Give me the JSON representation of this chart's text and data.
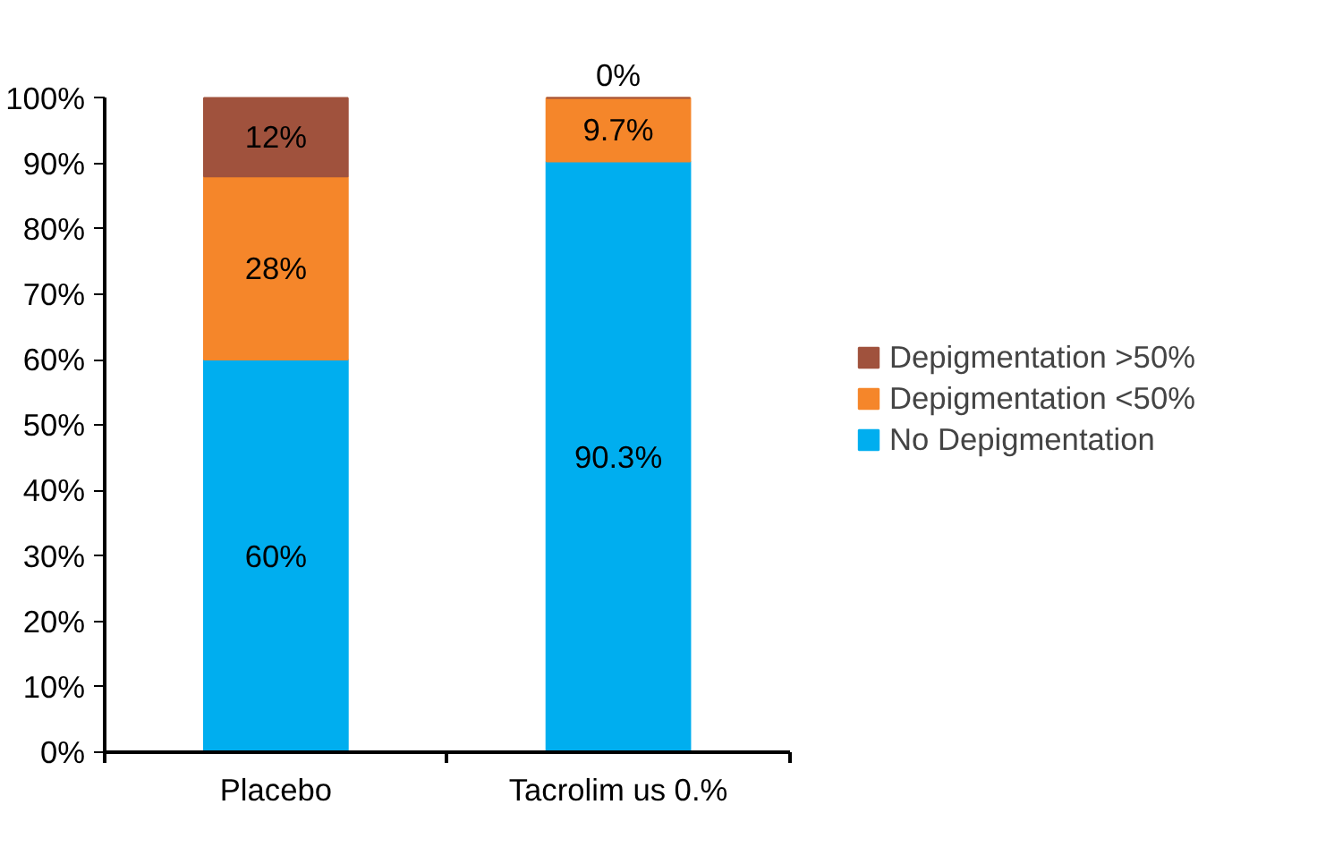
{
  "chart_data": {
    "type": "bar",
    "stacked": true,
    "categories": [
      "Placebo",
      "Tacrolim us 0.%"
    ],
    "series": [
      {
        "name": "No Depigmentation",
        "color": "#00aeef",
        "values": [
          60,
          90.3
        ],
        "value_labels": [
          "60%",
          "90.3%"
        ]
      },
      {
        "name": "Depigmentation <50%",
        "color": "#f5862a",
        "values": [
          28,
          9.7
        ],
        "value_labels": [
          "28%",
          "9.7%"
        ]
      },
      {
        "name": "Depigmentation >50%",
        "color": "#a0523d",
        "values": [
          12,
          0
        ],
        "value_labels": [
          "12%",
          "0%"
        ]
      }
    ],
    "ylim": [
      0,
      100
    ],
    "yticks": [
      {
        "value": 0,
        "label": "0%"
      },
      {
        "value": 10,
        "label": "10%"
      },
      {
        "value": 20,
        "label": "20%"
      },
      {
        "value": 30,
        "label": "30%"
      },
      {
        "value": 40,
        "label": "40%"
      },
      {
        "value": 50,
        "label": "50%"
      },
      {
        "value": 60,
        "label": "60%"
      },
      {
        "value": 70,
        "label": "70%"
      },
      {
        "value": 80,
        "label": "80%"
      },
      {
        "value": 90,
        "label": "90%"
      },
      {
        "value": 100,
        "label": "100%"
      }
    ],
    "grid": false,
    "legend": "right"
  }
}
